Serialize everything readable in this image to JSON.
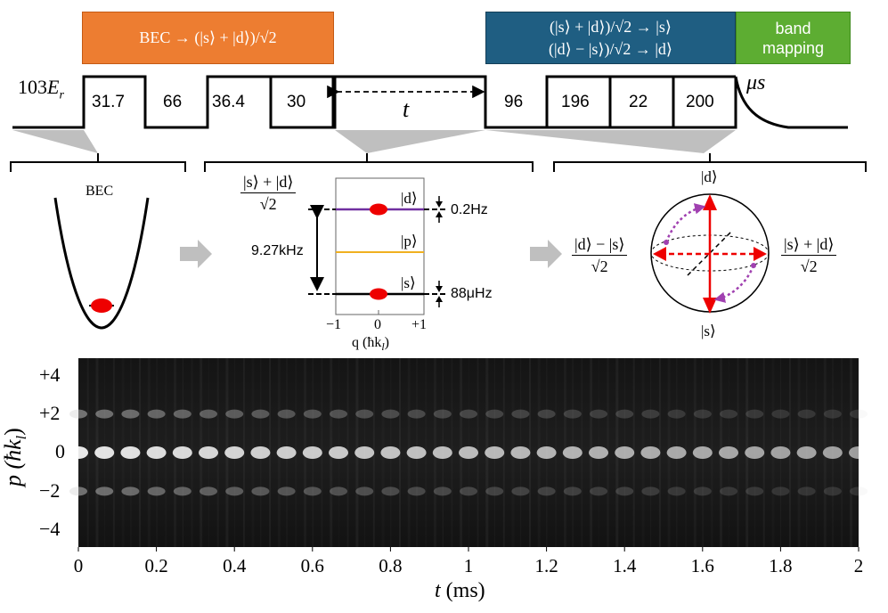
{
  "figure": {
    "stage_boxes": {
      "prep": "BEC → (|s⟩ + |d⟩)/√2",
      "readout_line1": "(|s⟩ + |d⟩)/√2 → |s⟩",
      "readout_line2": "(|d⟩ − |s⟩)/√2 → |d⟩",
      "band_line1": "band",
      "band_line2": "mapping",
      "prep_color": "#ED7D31",
      "readout_color": "#1F5E82",
      "band_color": "#5DAD32"
    },
    "sequence": {
      "depth_label": "103E_r",
      "depth_main": "103",
      "depth_sym": "E",
      "depth_sub": "r",
      "durations": [
        "31.7",
        "66",
        "36.4",
        "30",
        "96",
        "196",
        "22",
        "200"
      ],
      "evolution_label": "t",
      "unit_label": "μs"
    },
    "panel_bec": {
      "label": "BEC"
    },
    "panel_levels": {
      "state_top_num": "|s⟩ + |d⟩",
      "state_top_den": "√2",
      "level_d": "|d⟩",
      "level_p": "|p⟩",
      "level_s": "|s⟩",
      "gap_label": "9.27kHz",
      "width_d": "0.2Hz",
      "width_s": "88μHz",
      "q_ticks": [
        "−1",
        "0",
        "+1"
      ],
      "q_axis_label": "q (ħk",
      "q_axis_sub": "l",
      "color_d": "#7030A0",
      "color_p": "#F0B020",
      "color_s": "#000000"
    },
    "panel_bloch": {
      "top_label": "|d⟩",
      "bottom_label": "|s⟩",
      "left_num": "|d⟩ − |s⟩",
      "left_den": "√2",
      "right_num": "|s⟩ + |d⟩",
      "right_den": "√2",
      "arrow_color": "#EE0000",
      "rotation_color": "#A040B0"
    },
    "spectrogram": {
      "y_label": "p (ħk",
      "y_label_sub": "l",
      "y_ticks": [
        "+4",
        "+2",
        "0",
        "−2",
        "−4"
      ],
      "x_ticks": [
        "0",
        "0.2",
        "0.4",
        "0.6",
        "0.8",
        "1",
        "1.2",
        "1.4",
        "1.6",
        "1.8",
        "2"
      ],
      "x_label": "t (ms)",
      "x_label_var": "t",
      "x_label_unit": " (ms)"
    }
  }
}
